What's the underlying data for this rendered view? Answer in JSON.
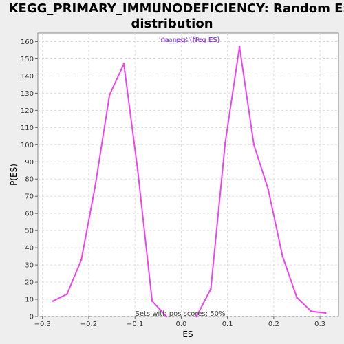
{
  "chart_data": {
    "type": "line",
    "title_line1": "KEGG_PRIMARY_IMMUNODEFICIENCY: Random ES",
    "title_line2": "distribution",
    "xlabel": "ES",
    "ylabel": "P(ES)",
    "xlim": [
      -0.31,
      0.34
    ],
    "ylim": [
      0,
      165
    ],
    "xticks": [
      -0.3,
      -0.2,
      -0.1,
      0.0,
      0.1,
      0.2,
      0.3
    ],
    "xtick_labels": [
      "−0.3",
      "−0.2",
      "−0.1",
      "0.0",
      "0.1",
      "0.2",
      "0.3"
    ],
    "yticks": [
      0,
      10,
      20,
      30,
      40,
      50,
      60,
      70,
      80,
      90,
      100,
      110,
      120,
      130,
      140,
      150,
      160
    ],
    "grid": true,
    "legend_placement": "top-center",
    "legend_text_back": "'na_pos' (Pos ES)",
    "legend_text_front": "'na_neg' (Neg ES)",
    "legend_color_back": "#7f7fd0",
    "legend_color_front": "#9933cc",
    "annotation": "Sets with pos scores: 50%",
    "line_color": "#ee44ee",
    "series": [
      {
        "name": "Neg ES",
        "x": [
          -0.277,
          -0.247,
          -0.216,
          -0.186,
          -0.155,
          -0.124,
          -0.094,
          -0.063,
          -0.032
        ],
        "y": [
          9,
          13,
          33,
          76,
          129,
          147,
          85,
          9,
          0
        ]
      },
      {
        "name": "Pos ES",
        "x": [
          0.033,
          0.064,
          0.095,
          0.126,
          0.157,
          0.188,
          0.219,
          0.25,
          0.281,
          0.312
        ],
        "y": [
          0,
          16,
          101,
          157,
          100,
          74,
          35,
          11,
          3,
          2
        ]
      }
    ]
  }
}
